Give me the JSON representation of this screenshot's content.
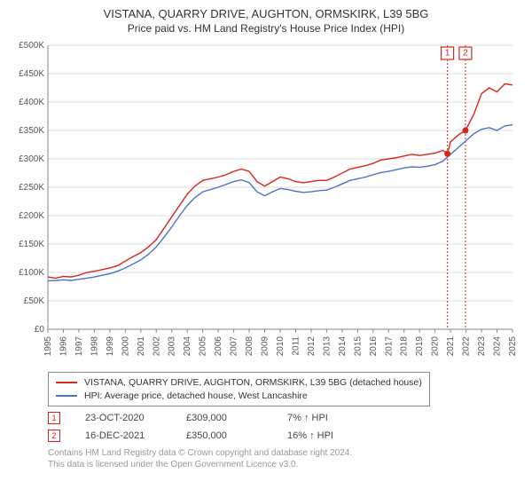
{
  "title": "VISTANA, QUARRY DRIVE, AUGHTON, ORMSKIRK, L39 5BG",
  "subtitle": "Price paid vs. HM Land Registry's House Price Index (HPI)",
  "chart": {
    "type": "line",
    "background_color": "#ffffff",
    "grid_color": "#dddddd",
    "axis_color": "#888888",
    "title_fontsize": 13,
    "subtitle_fontsize": 12,
    "tick_fontsize": 10,
    "x": {
      "min": 1995,
      "max": 2025,
      "ticks": [
        1995,
        1996,
        1997,
        1998,
        1999,
        2000,
        2001,
        2002,
        2003,
        2004,
        2005,
        2006,
        2007,
        2008,
        2009,
        2010,
        2011,
        2012,
        2013,
        2014,
        2015,
        2016,
        2017,
        2018,
        2019,
        2020,
        2021,
        2022,
        2023,
        2024,
        2025
      ],
      "tick_labels": [
        "1995",
        "1996",
        "1997",
        "1998",
        "1999",
        "2000",
        "2001",
        "2002",
        "2003",
        "2004",
        "2005",
        "2006",
        "2007",
        "2008",
        "2009",
        "2010",
        "2011",
        "2012",
        "2013",
        "2014",
        "2015",
        "2016",
        "2017",
        "2018",
        "2019",
        "2020",
        "2021",
        "2022",
        "2023",
        "2024",
        "2025"
      ],
      "label_rotation": -90
    },
    "y": {
      "min": 0,
      "max": 500000,
      "ticks": [
        0,
        50000,
        100000,
        150000,
        200000,
        250000,
        300000,
        350000,
        400000,
        450000,
        500000
      ],
      "tick_labels": [
        "£0",
        "£50K",
        "£100K",
        "£150K",
        "£200K",
        "£250K",
        "£300K",
        "£350K",
        "£400K",
        "£450K",
        "£500K"
      ]
    },
    "series": [
      {
        "name": "price_paid",
        "label": "VISTANA, QUARRY DRIVE, AUGHTON, ORMSKIRK, L39 5BG (detached house)",
        "color": "#d9241d",
        "line_width": 1.4,
        "points": [
          [
            1995,
            92000
          ],
          [
            1995.5,
            90000
          ],
          [
            1996,
            93000
          ],
          [
            1996.5,
            92000
          ],
          [
            1997,
            95000
          ],
          [
            1997.5,
            100000
          ],
          [
            1998,
            102000
          ],
          [
            1998.5,
            105000
          ],
          [
            1999,
            108000
          ],
          [
            1999.5,
            112000
          ],
          [
            2000,
            120000
          ],
          [
            2000.5,
            128000
          ],
          [
            2001,
            135000
          ],
          [
            2001.5,
            145000
          ],
          [
            2002,
            158000
          ],
          [
            2002.5,
            178000
          ],
          [
            2003,
            198000
          ],
          [
            2003.5,
            218000
          ],
          [
            2004,
            238000
          ],
          [
            2004.5,
            252000
          ],
          [
            2005,
            262000
          ],
          [
            2005.5,
            265000
          ],
          [
            2006,
            268000
          ],
          [
            2006.5,
            272000
          ],
          [
            2007,
            278000
          ],
          [
            2007.5,
            282000
          ],
          [
            2008,
            278000
          ],
          [
            2008.5,
            260000
          ],
          [
            2009,
            252000
          ],
          [
            2009.5,
            260000
          ],
          [
            2010,
            268000
          ],
          [
            2010.5,
            265000
          ],
          [
            2011,
            260000
          ],
          [
            2011.5,
            258000
          ],
          [
            2012,
            260000
          ],
          [
            2012.5,
            262000
          ],
          [
            2013,
            262000
          ],
          [
            2013.5,
            268000
          ],
          [
            2014,
            275000
          ],
          [
            2014.5,
            282000
          ],
          [
            2015,
            285000
          ],
          [
            2015.5,
            288000
          ],
          [
            2016,
            292000
          ],
          [
            2016.5,
            298000
          ],
          [
            2017,
            300000
          ],
          [
            2017.5,
            302000
          ],
          [
            2018,
            305000
          ],
          [
            2018.5,
            308000
          ],
          [
            2019,
            306000
          ],
          [
            2019.5,
            308000
          ],
          [
            2020,
            310000
          ],
          [
            2020.5,
            315000
          ],
          [
            2020.8,
            309000
          ],
          [
            2021,
            330000
          ],
          [
            2021.5,
            342000
          ],
          [
            2021.96,
            350000
          ],
          [
            2022.5,
            378000
          ],
          [
            2023,
            415000
          ],
          [
            2023.5,
            425000
          ],
          [
            2024,
            418000
          ],
          [
            2024.5,
            432000
          ],
          [
            2025,
            430000
          ]
        ]
      },
      {
        "name": "hpi",
        "label": "HPI: Average price, detached house, West Lancashire",
        "color": "#4a74c9",
        "line_width": 1.4,
        "points": [
          [
            1995,
            85000
          ],
          [
            1995.5,
            86000
          ],
          [
            1996,
            87000
          ],
          [
            1996.5,
            86000
          ],
          [
            1997,
            88000
          ],
          [
            1997.5,
            90000
          ],
          [
            1998,
            92000
          ],
          [
            1998.5,
            95000
          ],
          [
            1999,
            98000
          ],
          [
            1999.5,
            102000
          ],
          [
            2000,
            108000
          ],
          [
            2000.5,
            115000
          ],
          [
            2001,
            122000
          ],
          [
            2001.5,
            132000
          ],
          [
            2002,
            145000
          ],
          [
            2002.5,
            162000
          ],
          [
            2003,
            180000
          ],
          [
            2003.5,
            200000
          ],
          [
            2004,
            218000
          ],
          [
            2004.5,
            232000
          ],
          [
            2005,
            242000
          ],
          [
            2005.5,
            246000
          ],
          [
            2006,
            250000
          ],
          [
            2006.5,
            255000
          ],
          [
            2007,
            260000
          ],
          [
            2007.5,
            263000
          ],
          [
            2008,
            258000
          ],
          [
            2008.5,
            242000
          ],
          [
            2009,
            235000
          ],
          [
            2009.5,
            242000
          ],
          [
            2010,
            248000
          ],
          [
            2010.5,
            246000
          ],
          [
            2011,
            243000
          ],
          [
            2011.5,
            241000
          ],
          [
            2012,
            242000
          ],
          [
            2012.5,
            244000
          ],
          [
            2013,
            245000
          ],
          [
            2013.5,
            250000
          ],
          [
            2014,
            256000
          ],
          [
            2014.5,
            262000
          ],
          [
            2015,
            265000
          ],
          [
            2015.5,
            268000
          ],
          [
            2016,
            272000
          ],
          [
            2016.5,
            276000
          ],
          [
            2017,
            278000
          ],
          [
            2017.5,
            281000
          ],
          [
            2018,
            284000
          ],
          [
            2018.5,
            286000
          ],
          [
            2019,
            285000
          ],
          [
            2019.5,
            287000
          ],
          [
            2020,
            290000
          ],
          [
            2020.5,
            296000
          ],
          [
            2021,
            308000
          ],
          [
            2021.5,
            320000
          ],
          [
            2022,
            332000
          ],
          [
            2022.5,
            344000
          ],
          [
            2023,
            352000
          ],
          [
            2023.5,
            355000
          ],
          [
            2024,
            350000
          ],
          [
            2024.5,
            358000
          ],
          [
            2025,
            360000
          ]
        ]
      }
    ],
    "markers": [
      {
        "num": "1",
        "x": 2020.8,
        "y": 309000,
        "color": "#d9241d"
      },
      {
        "num": "2",
        "x": 2021.96,
        "y": 350000,
        "color": "#d9241d"
      }
    ]
  },
  "legend": {
    "border_color": "#888888",
    "items": [
      {
        "color": "#d9241d",
        "label": "VISTANA, QUARRY DRIVE, AUGHTON, ORMSKIRK, L39 5BG (detached house)"
      },
      {
        "color": "#4a74c9",
        "label": "HPI: Average price, detached house, West Lancashire"
      }
    ]
  },
  "marker_rows": [
    {
      "num": "1",
      "color": "#d9241d",
      "date": "23-OCT-2020",
      "price": "£309,000",
      "delta": "7% ↑ HPI"
    },
    {
      "num": "2",
      "color": "#d9241d",
      "date": "16-DEC-2021",
      "price": "£350,000",
      "delta": "16% ↑ HPI"
    }
  ],
  "attribution": {
    "line1": "Contains HM Land Registry data © Crown copyright and database right 2024.",
    "line2": "This data is licensed under the Open Government Licence v3.0."
  }
}
